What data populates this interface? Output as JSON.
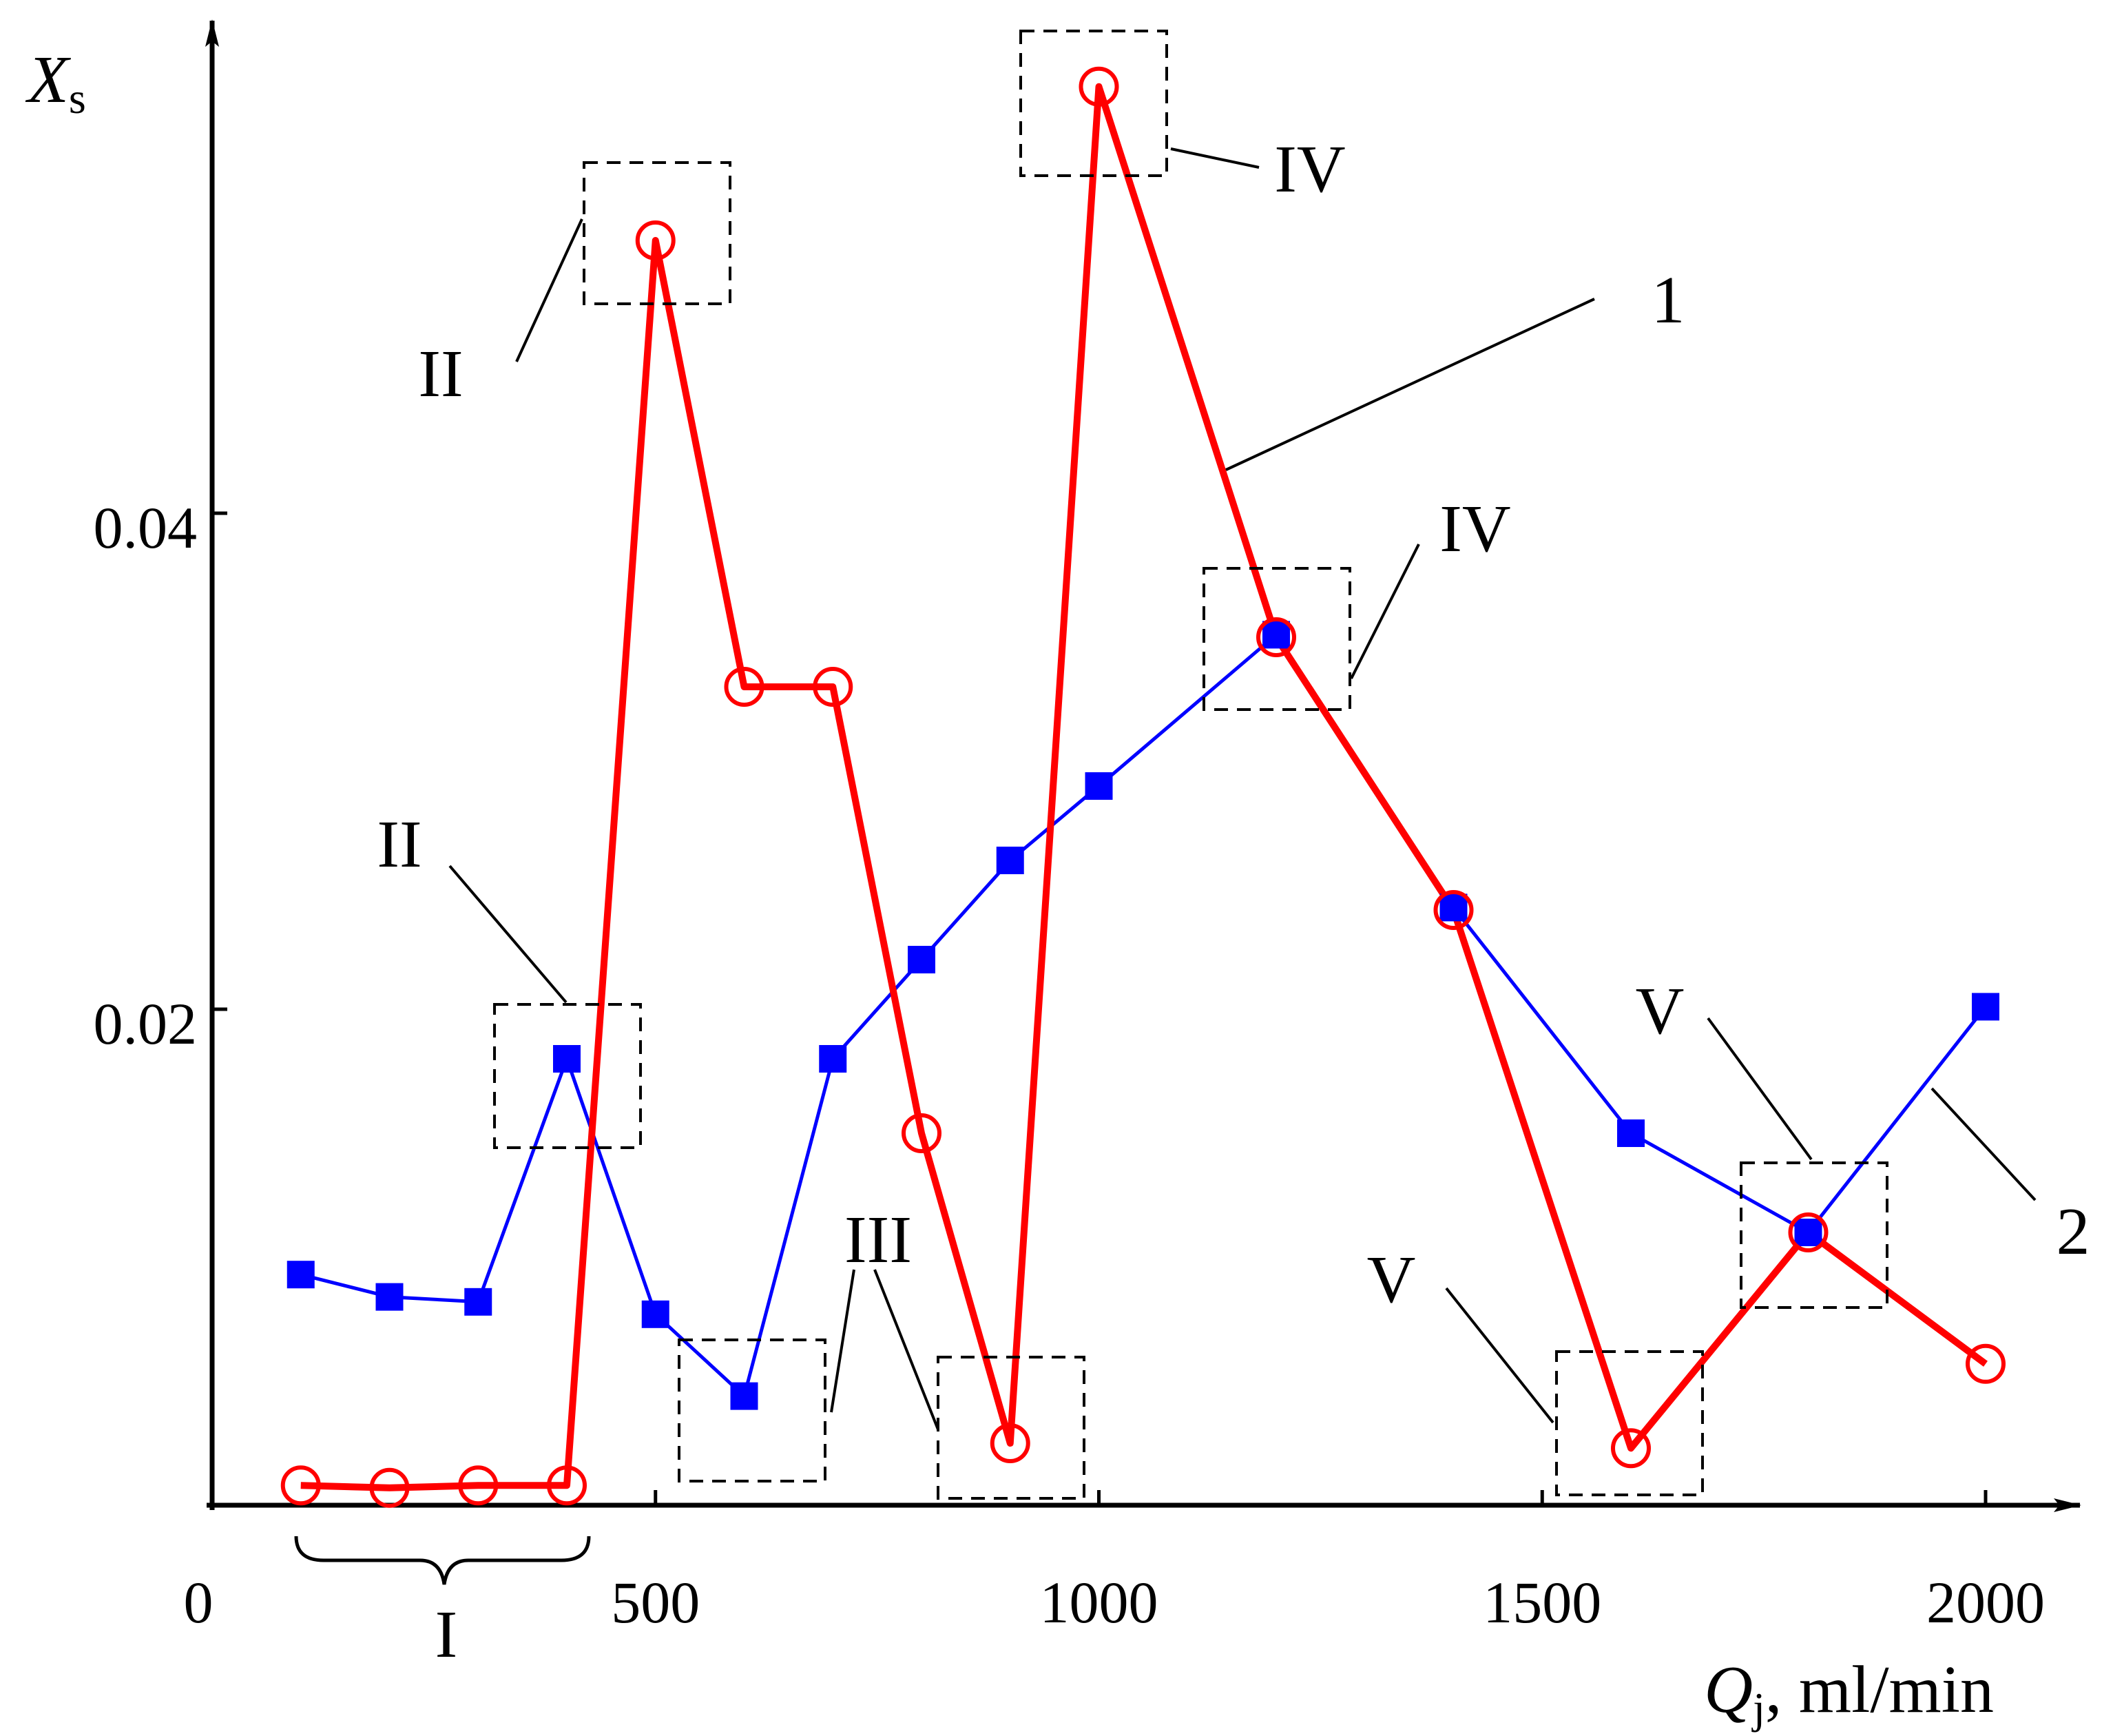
{
  "chart_data": {
    "type": "line",
    "title": "",
    "xlabel": {
      "symbol": "Q",
      "subscript": "j",
      "unit": ", ml/min"
    },
    "ylabel": {
      "symbol": "X",
      "subscript": "s"
    },
    "xlim": [
      0,
      2100
    ],
    "ylim": [
      0,
      0.0605
    ],
    "x_ticks": [
      {
        "value": 0,
        "label": "0"
      },
      {
        "value": 500,
        "label": "500"
      },
      {
        "value": 1000,
        "label": "1000"
      },
      {
        "value": 1500,
        "label": "1500"
      },
      {
        "value": 2000,
        "label": "2000"
      }
    ],
    "y_ticks": [
      {
        "value": 0.02,
        "label": "0.02"
      },
      {
        "value": 0.04,
        "label": "0.04"
      }
    ],
    "grid": false,
    "series": [
      {
        "name": "1",
        "color": "#ff0000",
        "marker": "open-circle",
        "x": [
          100,
          200,
          300,
          400,
          500,
          600,
          700,
          800,
          900,
          1000,
          1200,
          1400,
          1600,
          1800,
          2000
        ],
        "y": [
          0.0008,
          0.0007,
          0.0008,
          0.0008,
          0.051,
          0.033,
          0.033,
          0.015,
          0.0025,
          0.0572,
          0.035,
          0.024,
          0.0023,
          0.011,
          0.0057
        ]
      },
      {
        "name": "2",
        "color": "#0000ff",
        "marker": "filled-square",
        "x": [
          100,
          200,
          300,
          400,
          500,
          600,
          700,
          800,
          900,
          1000,
          1200,
          1400,
          1600,
          1800,
          2000
        ],
        "y": [
          0.0093,
          0.0084,
          0.0082,
          0.018,
          0.0077,
          0.0044,
          0.018,
          0.022,
          0.026,
          0.029,
          0.0351,
          0.0241,
          0.015,
          0.011,
          0.0201
        ]
      }
    ],
    "annotations": [
      {
        "id": "roman-I",
        "label": "I"
      },
      {
        "id": "s1-II",
        "label": "II"
      },
      {
        "id": "s1-IV",
        "label": "IV"
      },
      {
        "id": "s1-label",
        "label": "1"
      },
      {
        "id": "s2-II",
        "label": "II"
      },
      {
        "id": "s2-IV",
        "label": "IV"
      },
      {
        "id": "III",
        "label": "III"
      },
      {
        "id": "s1-V",
        "label": "V"
      },
      {
        "id": "s2-V",
        "label": "V"
      },
      {
        "id": "s2-label",
        "label": "2"
      }
    ]
  }
}
